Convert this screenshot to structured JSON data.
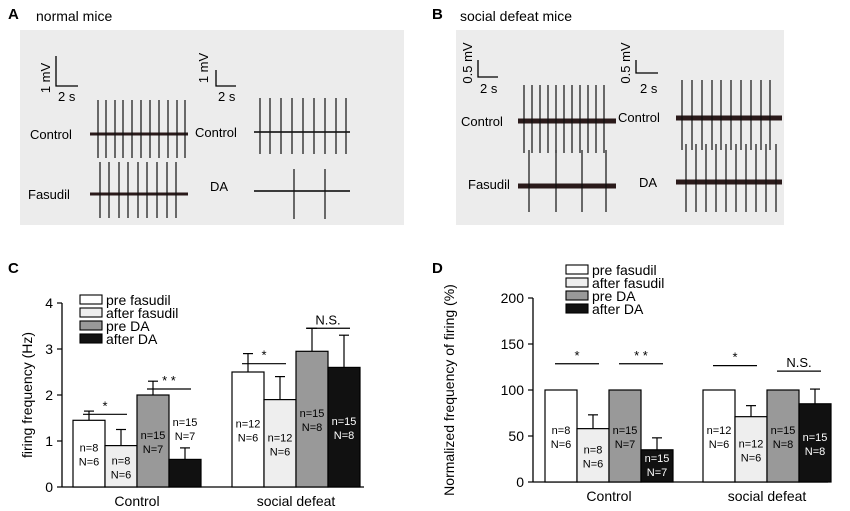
{
  "panels": {
    "A": {
      "letter": "A",
      "title": "normal mice",
      "scale_left": {
        "v": "1 mV",
        "t": "2 s"
      },
      "scale_right": {
        "v": "1 mV",
        "t": "2 s"
      },
      "labels": {
        "control_left": "Control",
        "treat_left": "Fasudil",
        "control_right": "Control",
        "treat_right": "DA"
      }
    },
    "B": {
      "letter": "B",
      "title": "social defeat mice",
      "scale_left": {
        "v": "0.5 mV",
        "t": "2 s"
      },
      "scale_right": {
        "v": "0.5 mV",
        "t": "2 s"
      },
      "labels": {
        "control_left": "Control",
        "treat_left": "Fasudil",
        "control_right": "Control",
        "treat_right": "DA"
      }
    },
    "C": {
      "letter": "C"
    },
    "D": {
      "letter": "D"
    }
  },
  "chart_data": [
    {
      "type": "bar",
      "panel": "C",
      "ylabel": "firing frequency (Hz)",
      "ylim": [
        0,
        4
      ],
      "yticks": [
        "0",
        "1",
        "2",
        "3",
        "4"
      ],
      "groups": [
        "Control",
        "social defeat"
      ],
      "legend": [
        {
          "label": "pre fasudil",
          "color": "#ffffff"
        },
        {
          "label": "after fasudil",
          "color": "#eeeeee"
        },
        {
          "label": "pre DA",
          "color": "#999999"
        },
        {
          "label": "after DA",
          "color": "#111111"
        }
      ],
      "bars": [
        {
          "group": 0,
          "series": 0,
          "value": 1.45,
          "err": 0.2,
          "n1": "n=8",
          "n2": "N=6",
          "labelInside": true
        },
        {
          "group": 0,
          "series": 1,
          "value": 0.9,
          "err": 0.35,
          "n1": "n=8",
          "n2": "N=6",
          "labelInside": true
        },
        {
          "group": 0,
          "series": 2,
          "value": 2.0,
          "err": 0.3,
          "n1": "n=15",
          "n2": "N=7",
          "labelInside": true
        },
        {
          "group": 0,
          "series": 3,
          "value": 0.6,
          "err": 0.25,
          "n1": "n=15",
          "n2": "N=7",
          "labelInside": false
        },
        {
          "group": 1,
          "series": 0,
          "value": 2.5,
          "err": 0.4,
          "n1": "n=12",
          "n2": "N=6",
          "labelInside": true
        },
        {
          "group": 1,
          "series": 1,
          "value": 1.9,
          "err": 0.5,
          "n1": "n=12",
          "n2": "N=6",
          "labelInside": true
        },
        {
          "group": 1,
          "series": 2,
          "value": 2.95,
          "err": 0.5,
          "n1": "n=15",
          "n2": "N=8",
          "labelInside": true
        },
        {
          "group": 1,
          "series": 3,
          "value": 2.6,
          "err": 0.7,
          "n1": "n=15",
          "n2": "N=8",
          "labelInside": true
        }
      ],
      "significance": [
        {
          "from": 0,
          "to": 1,
          "level": 1.45,
          "text": "*"
        },
        {
          "from": 2,
          "to": 3,
          "level": 2.0,
          "text": "* *"
        },
        {
          "from": 4,
          "to": 5,
          "level": 2.55,
          "text": "*"
        },
        {
          "from": 6,
          "to": 7,
          "level": 3.32,
          "text": "N.S."
        }
      ]
    },
    {
      "type": "bar",
      "panel": "D",
      "ylabel": "Normalized frequency of  firing (%)",
      "ylim": [
        0,
        200
      ],
      "yticks": [
        "0",
        "50",
        "100",
        "150",
        "200"
      ],
      "groups": [
        "Control",
        "social defeat"
      ],
      "legend": [
        {
          "label": "pre fasudil",
          "color": "#ffffff"
        },
        {
          "label": "after fasudil",
          "color": "#eeeeee"
        },
        {
          "label": "pre DA",
          "color": "#999999"
        },
        {
          "label": "after DA",
          "color": "#111111"
        }
      ],
      "bars": [
        {
          "group": 0,
          "series": 0,
          "value": 100,
          "err": 0,
          "n1": "n=8",
          "n2": "N=6",
          "labelInside": true
        },
        {
          "group": 0,
          "series": 1,
          "value": 58,
          "err": 15,
          "n1": "n=8",
          "n2": "N=6",
          "labelInside": true
        },
        {
          "group": 0,
          "series": 2,
          "value": 100,
          "err": 0,
          "n1": "n=15",
          "n2": "N=7",
          "labelInside": true
        },
        {
          "group": 0,
          "series": 3,
          "value": 35,
          "err": 13,
          "n1": "n=15",
          "n2": "N=7",
          "labelInside": true
        },
        {
          "group": 1,
          "series": 0,
          "value": 100,
          "err": 0,
          "n1": "n=12",
          "n2": "N=6",
          "labelInside": true
        },
        {
          "group": 1,
          "series": 1,
          "value": 71,
          "err": 12,
          "n1": "n=12",
          "n2": "N=6",
          "labelInside": true
        },
        {
          "group": 1,
          "series": 2,
          "value": 100,
          "err": 0,
          "n1": "n=15",
          "n2": "N=8",
          "labelInside": true
        },
        {
          "group": 1,
          "series": 3,
          "value": 85,
          "err": 16,
          "n1": "n=15",
          "n2": "N=8",
          "labelInside": true
        }
      ],
      "significance": [
        {
          "from": 0,
          "to": 1,
          "level": 122,
          "text": "*"
        },
        {
          "from": 2,
          "to": 3,
          "level": 122,
          "text": "* *"
        },
        {
          "from": 4,
          "to": 5,
          "level": 120,
          "text": "*"
        },
        {
          "from": 6,
          "to": 7,
          "level": 114,
          "text": "N.S."
        }
      ]
    }
  ]
}
